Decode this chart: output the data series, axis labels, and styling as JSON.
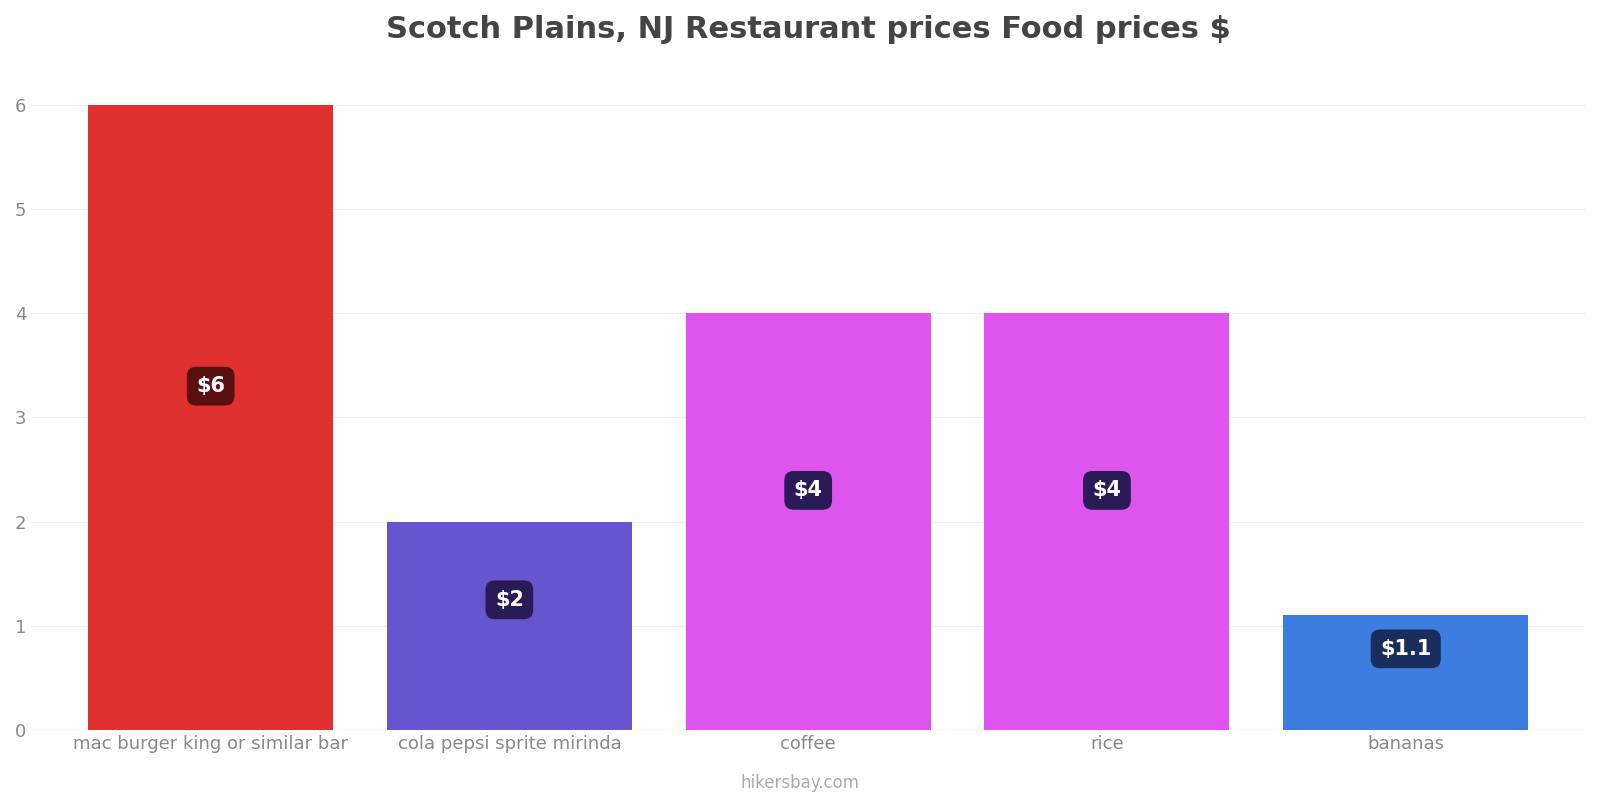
{
  "title": "Scotch Plains, NJ Restaurant prices Food prices $",
  "categories": [
    "mac burger king or similar bar",
    "cola pepsi sprite mirinda",
    "coffee",
    "rice",
    "bananas"
  ],
  "values": [
    6,
    2,
    4,
    4,
    1.1
  ],
  "bar_colors": [
    "#e03030",
    "#6655cc",
    "#dd55ee",
    "#dd55ee",
    "#3d7de0"
  ],
  "label_texts": [
    "$6",
    "$2",
    "$4",
    "$4",
    "$1.1"
  ],
  "label_box_colors": [
    "#5a1010",
    "#2a1a55",
    "#2a1a55",
    "#2a1a55",
    "#1a2e5e"
  ],
  "label_y_positions": [
    3.3,
    1.25,
    2.3,
    2.3,
    0.78
  ],
  "ylim": [
    0,
    6.4
  ],
  "yticks": [
    0,
    1,
    2,
    3,
    4,
    5,
    6
  ],
  "footer_text": "hikersbay.com",
  "title_fontsize": 22,
  "background_color": "#ffffff",
  "grid_color": "#f0f0f0"
}
